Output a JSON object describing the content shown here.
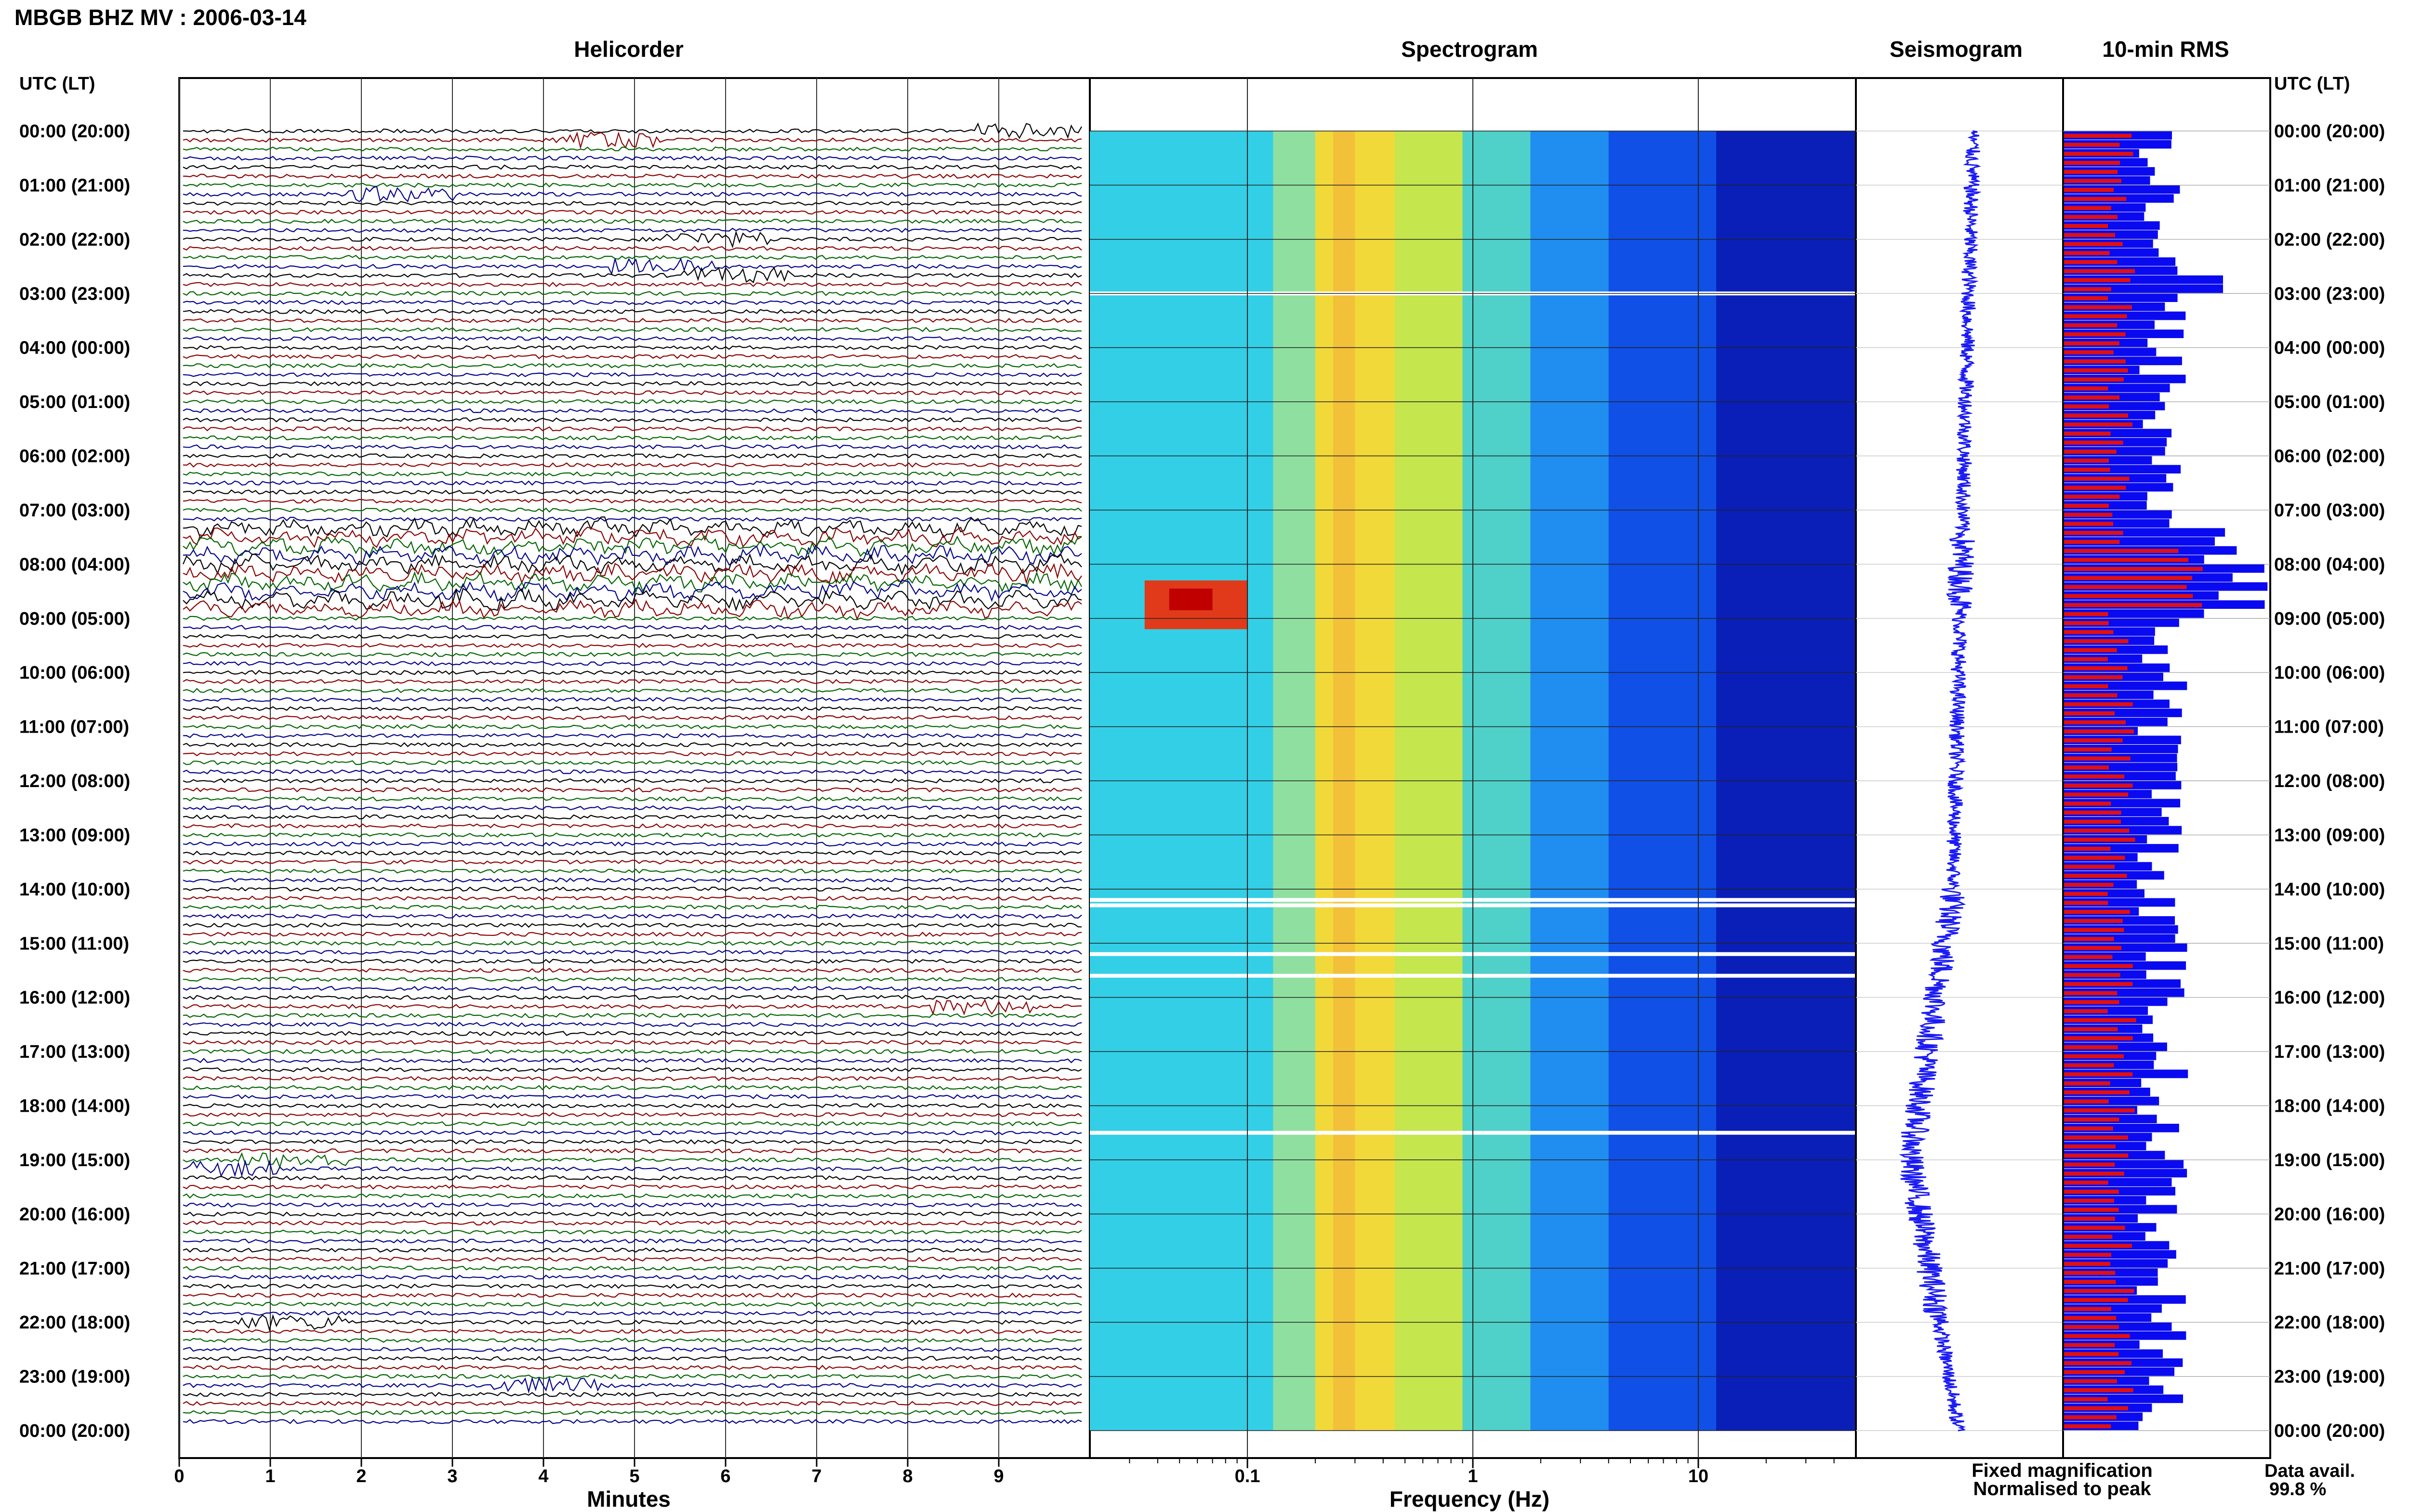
{
  "header": {
    "title": "MBGB BHZ MV : 2006-03-14"
  },
  "panels": {
    "helicorder": "Helicorder",
    "spectrogram": "Spectrogram",
    "seismogram": "Seismogram",
    "rms": "10-min RMS"
  },
  "axis": {
    "left_heading": "UTC (LT)",
    "right_heading": "UTC (LT)",
    "minutes_label": "Minutes",
    "frequency_label": "Frequency (Hz)",
    "minutes_ticks": [
      "0",
      "1",
      "2",
      "3",
      "4",
      "5",
      "6",
      "7",
      "8",
      "9"
    ],
    "freq_ticks": [
      "0.1",
      "1",
      "10"
    ]
  },
  "hours": [
    "00:00 (20:00)",
    "01:00 (21:00)",
    "02:00 (22:00)",
    "03:00 (23:00)",
    "04:00 (00:00)",
    "05:00 (01:00)",
    "06:00 (02:00)",
    "07:00 (03:00)",
    "08:00 (04:00)",
    "09:00 (05:00)",
    "10:00 (06:00)",
    "11:00 (07:00)",
    "12:00 (08:00)",
    "13:00 (09:00)",
    "14:00 (10:00)",
    "15:00 (11:00)",
    "16:00 (12:00)",
    "17:00 (13:00)",
    "18:00 (14:00)",
    "19:00 (15:00)",
    "20:00 (16:00)",
    "21:00 (17:00)",
    "22:00 (18:00)",
    "23:00 (19:00)",
    "00:00 (20:00)"
  ],
  "legend": {
    "fixed": "Fixed magnification",
    "normalised": "Normalised to peak",
    "fixed_color": "#1010ee",
    "normalised_color": "#ee1010"
  },
  "availability": {
    "label": "Data avail.",
    "value": "99.8 %"
  },
  "colors": {
    "trace_colors": [
      "#000000",
      "#8b0000",
      "#006400",
      "#00008b"
    ],
    "rms_fixed": "#0a0af0",
    "rms_normalised": "#e01010",
    "seismogram": "#1a1af5"
  },
  "chart_data": [
    {
      "type": "line",
      "title": "Helicorder",
      "xlabel": "Minutes",
      "xlim": [
        0,
        10
      ],
      "rows_per_hour": 6,
      "hours": 24,
      "note_events_hour": [
        0.1,
        1.2,
        2.0,
        2.6,
        7.4,
        8.2,
        8.6,
        16.2,
        19.1,
        22.0,
        23.2
      ]
    },
    {
      "type": "heatmap",
      "title": "Spectrogram",
      "xlabel": "Frequency (Hz)",
      "xscale": "log",
      "xlim": [
        0.02,
        50
      ],
      "gap_hours": [
        3.0,
        14.2,
        14.3,
        15.2,
        15.6,
        18.5
      ]
    },
    {
      "type": "line",
      "title": "Seismogram",
      "hours": 24
    },
    {
      "type": "bar",
      "title": "10-min RMS",
      "series": [
        {
          "name": "Fixed magnification"
        },
        {
          "name": "Normalised to peak"
        }
      ]
    }
  ]
}
